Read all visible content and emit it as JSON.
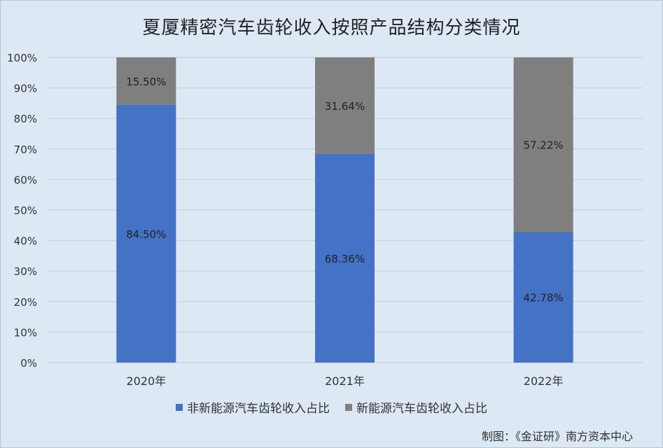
{
  "chart_data": {
    "type": "bar",
    "stacked": true,
    "title": "夏厦精密汽车齿轮收入按照产品结构分类情况",
    "categories": [
      "2020年",
      "2021年",
      "2022年"
    ],
    "series": [
      {
        "name": "非新能源汽车齿轮收入占比",
        "values": [
          84.5,
          68.36,
          42.78
        ],
        "labels": [
          "84.50%",
          "68.36%",
          "42.78%"
        ],
        "color": "#4472c4"
      },
      {
        "name": "新能源汽车齿轮收入占比",
        "values": [
          15.5,
          31.64,
          57.22
        ],
        "labels": [
          "15.50%",
          "31.64%",
          "57.22%"
        ],
        "color": "#7f7f7f"
      }
    ],
    "ylim": [
      0,
      100
    ],
    "yticks": [
      "0%",
      "10%",
      "20%",
      "30%",
      "40%",
      "50%",
      "60%",
      "70%",
      "80%",
      "90%",
      "100%"
    ],
    "grid": true,
    "legend": "bottom"
  },
  "source": "制图：《金证研》南方资本中心"
}
